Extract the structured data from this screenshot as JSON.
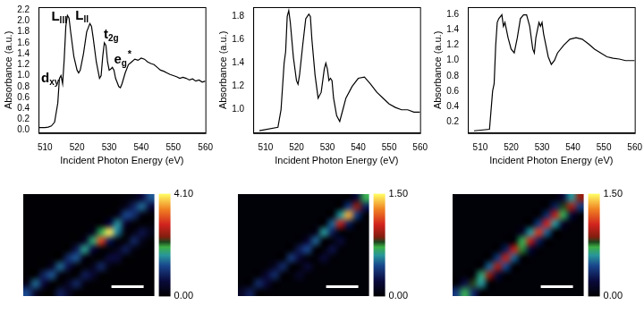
{
  "chart_data": [
    {
      "type": "line",
      "color": "#000000",
      "grid": false,
      "x_label": "Incident Photon Energy (eV)",
      "y_label": "Absorbance (a.u.)",
      "xlim": [
        508,
        560
      ],
      "xticks": [
        510,
        520,
        530,
        540,
        550,
        560
      ],
      "ylim": [
        -0.05,
        2.25
      ],
      "yticks": [
        {
          "value": 0,
          "label": "0.0"
        },
        0.2,
        0.4,
        0.6,
        0.8,
        {
          "value": 1,
          "label": "1.0"
        },
        1.2,
        1.4,
        1.6,
        1.8,
        {
          "value": 2,
          "label": "2.0"
        },
        2.2
      ],
      "x": [
        508,
        510,
        511,
        512,
        513,
        514,
        514.5,
        515,
        515.5,
        516,
        516.5,
        517,
        517.5,
        518,
        519,
        520,
        520.5,
        521,
        522,
        523,
        524,
        524.5,
        525,
        526,
        527,
        527.5,
        528,
        528.5,
        529,
        529.5,
        530,
        530.5,
        531,
        531.5,
        532,
        533,
        533.5,
        534,
        535,
        536,
        537,
        538,
        539,
        540,
        541,
        542,
        543,
        544,
        545,
        546,
        547,
        548,
        549,
        550,
        551,
        552,
        553,
        554,
        555,
        556,
        557,
        558,
        559,
        560
      ],
      "values": [
        0.05,
        0.05,
        0.06,
        0.08,
        0.15,
        0.5,
        0.95,
        1.0,
        0.85,
        1.3,
        1.9,
        2.1,
        2.05,
        1.8,
        1.35,
        1.1,
        1.05,
        1.1,
        1.4,
        1.8,
        1.95,
        1.9,
        1.7,
        1.25,
        0.95,
        1.0,
        1.35,
        1.6,
        1.55,
        1.25,
        1.1,
        1.12,
        1.15,
        1.1,
        0.95,
        0.8,
        0.78,
        0.85,
        1.05,
        1.2,
        1.25,
        1.3,
        1.28,
        1.32,
        1.3,
        1.25,
        1.22,
        1.2,
        1.15,
        1.1,
        1.08,
        1.05,
        1.02,
        1.0,
        0.98,
        0.95,
        0.97,
        0.95,
        0.92,
        0.94,
        0.9,
        0.92,
        0.88,
        0.9
      ],
      "annotations": [
        {
          "text": "L",
          "sub": "III",
          "x": 512,
          "y": 2.0
        },
        {
          "text": "L",
          "sub": "II",
          "x": 519.5,
          "y": 2.02
        },
        {
          "text": "t",
          "sub": "2g",
          "x": 528.3,
          "y": 1.68
        },
        {
          "text": "e",
          "sub": "g",
          "sup": "*",
          "x": 531.5,
          "y": 1.22
        },
        {
          "text": "d",
          "sub": "xy",
          "x": 508.8,
          "y": 0.88
        }
      ]
    },
    {
      "type": "line",
      "color": "#000000",
      "grid": false,
      "x_label": "Incident Photon Energy (eV)",
      "y_label": "Absorbance (a.u.)",
      "xlim": [
        506,
        560
      ],
      "xticks": [
        510,
        520,
        530,
        540,
        550,
        560
      ],
      "ylim": [
        0.8,
        1.88
      ],
      "yticks": [
        {
          "value": 1,
          "label": "1.0"
        },
        1.2,
        1.4,
        1.6,
        1.8
      ],
      "x": [
        508,
        514,
        515,
        516,
        516.5,
        517,
        517.5,
        518,
        519,
        520,
        520.5,
        521,
        522,
        523,
        524,
        524.5,
        525,
        526,
        527,
        528,
        529,
        529.5,
        530,
        530.5,
        531,
        531.5,
        532,
        533,
        534,
        535,
        536,
        538,
        540,
        542,
        544,
        546,
        548,
        550,
        552,
        554,
        556,
        558,
        560
      ],
      "values": [
        0.82,
        0.85,
        1.0,
        1.4,
        1.5,
        1.8,
        1.85,
        1.75,
        1.45,
        1.25,
        1.22,
        1.3,
        1.55,
        1.78,
        1.82,
        1.8,
        1.6,
        1.3,
        1.1,
        1.15,
        1.35,
        1.4,
        1.35,
        1.25,
        1.27,
        1.25,
        1.1,
        0.95,
        0.9,
        1.0,
        1.1,
        1.2,
        1.27,
        1.28,
        1.22,
        1.15,
        1.1,
        1.05,
        1.02,
        1.0,
        1.0,
        0.98,
        0.98
      ]
    },
    {
      "type": "line",
      "color": "#000000",
      "grid": false,
      "x_label": "Incident Photon Energy (eV)",
      "y_label": "Absorbance (a.u.)",
      "xlim": [
        506,
        560
      ],
      "xticks": [
        510,
        520,
        530,
        540,
        550,
        560
      ],
      "ylim": [
        0.05,
        1.7
      ],
      "yticks": [
        0.2,
        0.4,
        0.6,
        0.8,
        {
          "value": 1,
          "label": "1.0"
        },
        1.2,
        1.4,
        1.6
      ],
      "x": [
        508,
        513,
        514,
        514.5,
        515,
        515.5,
        516,
        517,
        517.5,
        518,
        519,
        520,
        521,
        522,
        523,
        524,
        525,
        526,
        527,
        527.5,
        528,
        529,
        529.5,
        530,
        530.5,
        531,
        532,
        533,
        534,
        535,
        537,
        539,
        541,
        543,
        545,
        547,
        549,
        551,
        553,
        555,
        557,
        560
      ],
      "values": [
        0.08,
        0.1,
        0.6,
        0.7,
        1.2,
        1.5,
        1.55,
        1.6,
        1.45,
        1.5,
        1.3,
        1.15,
        1.1,
        1.3,
        1.55,
        1.6,
        1.6,
        1.45,
        1.15,
        1.1,
        1.3,
        1.5,
        1.45,
        1.5,
        1.35,
        1.25,
        1.05,
        0.95,
        1.0,
        1.1,
        1.2,
        1.28,
        1.3,
        1.28,
        1.22,
        1.15,
        1.1,
        1.05,
        1.03,
        1.02,
        1.0,
        1.0
      ]
    },
    {
      "type": "heatmap",
      "colorbar": {
        "range": [
          0,
          4.1
        ],
        "ticks": [
          {
            "value": 0,
            "label": "0.00"
          },
          {
            "value": 4.1,
            "label": "4.10"
          }
        ]
      },
      "cells": [
        [
          0.05,
          0.05,
          0.05,
          0.05,
          0.05,
          0.05,
          0.05,
          0.05,
          0.05,
          0.05,
          0.05,
          0.05,
          0.1,
          0.2,
          0.6,
          1.3
        ],
        [
          0.05,
          0.05,
          0.05,
          0.05,
          0.05,
          0.05,
          0.05,
          0.05,
          0.05,
          0.05,
          0.05,
          0.05,
          0.3,
          0.9,
          1.4,
          0.6
        ],
        [
          0.05,
          0.05,
          0.05,
          0.05,
          0.05,
          0.05,
          0.05,
          0.05,
          0.05,
          0.05,
          0.05,
          0.3,
          1.2,
          1.0,
          0.2,
          0.05
        ],
        [
          0.05,
          0.05,
          0.05,
          0.05,
          0.05,
          0.05,
          0.05,
          0.05,
          0.05,
          0.05,
          0.6,
          1.6,
          0.5,
          0.05,
          0.05,
          0.1
        ],
        [
          0.05,
          0.05,
          0.05,
          0.05,
          0.05,
          0.05,
          0.05,
          0.05,
          0.3,
          1.9,
          4.0,
          1.5,
          0.1,
          0.2,
          0.7,
          0.3
        ],
        [
          0.05,
          0.05,
          0.05,
          0.05,
          0.05,
          0.05,
          0.05,
          0.4,
          1.8,
          3.1,
          0.8,
          0.1,
          0.1,
          0.9,
          0.3,
          0.05
        ],
        [
          0.05,
          0.05,
          0.05,
          0.05,
          0.05,
          0.05,
          0.8,
          1.7,
          0.6,
          0.1,
          0.05,
          0.3,
          0.8,
          0.2,
          0.05,
          0.05
        ],
        [
          0.05,
          0.05,
          0.05,
          0.05,
          0.05,
          1.0,
          1.3,
          0.2,
          0.05,
          0.05,
          0.6,
          0.6,
          0.05,
          0.05,
          0.05,
          0.05
        ],
        [
          0.05,
          0.05,
          0.05,
          0.4,
          1.4,
          0.7,
          0.1,
          0.05,
          0.3,
          0.9,
          0.2,
          0.05,
          0.05,
          0.05,
          0.05,
          0.05
        ],
        [
          0.05,
          0.05,
          0.9,
          1.3,
          0.2,
          0.05,
          0.05,
          0.8,
          0.5,
          0.05,
          0.05,
          0.05,
          0.05,
          0.05,
          0.05,
          0.05
        ],
        [
          0.3,
          1.4,
          0.6,
          0.05,
          0.05,
          0.4,
          0.9,
          0.2,
          0.05,
          0.05,
          0.05,
          0.05,
          0.05,
          0.05,
          0.05,
          0.05
        ],
        [
          1.2,
          0.4,
          0.05,
          0.05,
          0.8,
          0.4,
          0.05,
          0.05,
          0.05,
          0.05,
          0.05,
          0.05,
          0.05,
          0.05,
          0.05,
          0.05
        ]
      ]
    },
    {
      "type": "heatmap",
      "colorbar": {
        "range": [
          0,
          1.5
        ],
        "ticks": [
          {
            "value": 0,
            "label": "0.00"
          },
          {
            "value": 1.5,
            "label": "1.50"
          }
        ]
      },
      "cells": [
        [
          0.03,
          0.03,
          0.03,
          0.03,
          0.03,
          0.03,
          0.03,
          0.03,
          0.03,
          0.03,
          0.03,
          0.03,
          0.03,
          0.03,
          0.2,
          0.7
        ],
        [
          0.03,
          0.03,
          0.03,
          0.03,
          0.03,
          0.03,
          0.03,
          0.03,
          0.03,
          0.03,
          0.03,
          0.03,
          0.03,
          0.4,
          0.9,
          0.3
        ],
        [
          0.03,
          0.03,
          0.03,
          0.03,
          0.03,
          0.03,
          0.03,
          0.03,
          0.03,
          0.03,
          0.03,
          0.03,
          0.6,
          1.35,
          0.4,
          0.03
        ],
        [
          0.03,
          0.03,
          0.03,
          0.03,
          0.03,
          0.03,
          0.03,
          0.03,
          0.03,
          0.03,
          0.03,
          0.5,
          1.0,
          0.3,
          0.03,
          0.03
        ],
        [
          0.03,
          0.03,
          0.03,
          0.03,
          0.03,
          0.03,
          0.03,
          0.03,
          0.03,
          0.1,
          0.6,
          0.3,
          0.03,
          0.03,
          0.03,
          0.03
        ],
        [
          0.03,
          0.03,
          0.03,
          0.03,
          0.03,
          0.03,
          0.03,
          0.03,
          0.2,
          0.5,
          0.03,
          0.03,
          0.2,
          0.03,
          0.03,
          0.03
        ],
        [
          0.03,
          0.03,
          0.03,
          0.03,
          0.03,
          0.03,
          0.03,
          0.3,
          0.45,
          0.03,
          0.03,
          0.25,
          0.03,
          0.03,
          0.03,
          0.03
        ],
        [
          0.03,
          0.03,
          0.03,
          0.03,
          0.03,
          0.03,
          0.4,
          0.2,
          0.03,
          0.03,
          0.2,
          0.03,
          0.03,
          0.03,
          0.03,
          0.03
        ],
        [
          0.03,
          0.03,
          0.03,
          0.03,
          0.15,
          0.35,
          0.03,
          0.03,
          0.2,
          0.03,
          0.03,
          0.03,
          0.03,
          0.03,
          0.03,
          0.03
        ],
        [
          0.03,
          0.03,
          0.03,
          0.2,
          0.35,
          0.03,
          0.03,
          0.15,
          0.03,
          0.03,
          0.03,
          0.03,
          0.03,
          0.03,
          0.03,
          0.03
        ],
        [
          0.03,
          0.03,
          0.35,
          0.2,
          0.03,
          0.03,
          0.03,
          0.03,
          0.03,
          0.03,
          0.03,
          0.03,
          0.03,
          0.03,
          0.03,
          0.03
        ],
        [
          0.15,
          0.3,
          0.03,
          0.03,
          0.03,
          0.03,
          0.03,
          0.03,
          0.03,
          0.03,
          0.03,
          0.03,
          0.03,
          0.03,
          0.03,
          0.03
        ]
      ]
    },
    {
      "type": "heatmap",
      "colorbar": {
        "range": [
          0,
          1.5
        ],
        "ticks": [
          {
            "value": 0,
            "label": "0.00"
          },
          {
            "value": 1.5,
            "label": "1.50"
          }
        ]
      },
      "cells": [
        [
          0.03,
          0.03,
          0.03,
          0.03,
          0.03,
          0.03,
          0.03,
          0.03,
          0.03,
          0.03,
          0.03,
          0.03,
          0.03,
          0.2,
          0.6,
          0.9
        ],
        [
          0.03,
          0.03,
          0.03,
          0.03,
          0.03,
          0.03,
          0.03,
          0.03,
          0.03,
          0.03,
          0.03,
          0.03,
          0.3,
          0.8,
          0.95,
          0.4
        ],
        [
          0.03,
          0.03,
          0.03,
          0.03,
          0.03,
          0.03,
          0.03,
          0.03,
          0.03,
          0.03,
          0.03,
          0.35,
          1.0,
          0.7,
          0.2,
          0.03
        ],
        [
          0.03,
          0.03,
          0.03,
          0.03,
          0.03,
          0.03,
          0.03,
          0.03,
          0.03,
          0.03,
          0.4,
          1.05,
          0.6,
          0.15,
          0.03,
          0.03
        ],
        [
          0.03,
          0.03,
          0.03,
          0.03,
          0.03,
          0.03,
          0.03,
          0.03,
          0.15,
          0.6,
          1.1,
          0.5,
          0.03,
          0.03,
          0.03,
          0.03
        ],
        [
          0.03,
          0.03,
          0.03,
          0.03,
          0.03,
          0.03,
          0.03,
          0.03,
          0.7,
          1.0,
          0.3,
          0.03,
          0.03,
          0.03,
          0.03,
          0.03
        ],
        [
          0.03,
          0.03,
          0.03,
          0.03,
          0.03,
          0.03,
          0.3,
          1.0,
          0.75,
          0.2,
          0.03,
          0.03,
          0.03,
          0.03,
          0.03,
          0.03
        ],
        [
          0.03,
          0.03,
          0.03,
          0.03,
          0.03,
          0.4,
          1.0,
          0.5,
          0.03,
          0.03,
          0.03,
          0.03,
          0.03,
          0.03,
          0.03,
          0.03
        ],
        [
          0.03,
          0.03,
          0.03,
          0.03,
          0.5,
          0.95,
          0.45,
          0.03,
          0.03,
          0.03,
          0.03,
          0.03,
          0.03,
          0.03,
          0.03,
          0.03
        ],
        [
          0.03,
          0.03,
          0.03,
          0.65,
          0.9,
          0.2,
          0.03,
          0.03,
          0.03,
          0.03,
          0.03,
          0.03,
          0.03,
          0.03,
          0.03,
          0.03
        ],
        [
          0.03,
          0.25,
          0.8,
          0.6,
          0.03,
          0.03,
          0.03,
          0.03,
          0.03,
          0.03,
          0.03,
          0.03,
          0.03,
          0.03,
          0.03,
          0.03
        ],
        [
          0.4,
          0.7,
          0.35,
          0.03,
          0.03,
          0.03,
          0.03,
          0.03,
          0.03,
          0.03,
          0.03,
          0.03,
          0.03,
          0.03,
          0.03,
          0.03
        ]
      ]
    }
  ]
}
